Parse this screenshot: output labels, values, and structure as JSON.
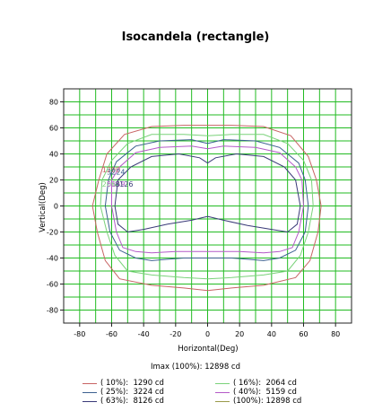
{
  "chart_data": {
    "type": "line",
    "title": "Isocandela (rectangle)",
    "xlabel": "Horizontal(Deg)",
    "ylabel": "Vertical(Deg)",
    "xlim": [
      -90,
      90
    ],
    "ylim": [
      -90,
      90
    ],
    "x_ticks": [
      -80,
      -60,
      -40,
      -20,
      0,
      20,
      40,
      60,
      80
    ],
    "y_ticks": [
      80,
      60,
      40,
      20,
      0,
      -20,
      -40,
      -60,
      -80
    ],
    "grid": true,
    "grid_color": "#22bb22",
    "imax_text": "Imax (100%): 12898 cd",
    "series": [
      {
        "name": "( 10%):  1290 cd",
        "color": "#c86464",
        "label": "1290",
        "points": [
          [
            -68,
            20
          ],
          [
            -72,
            0
          ],
          [
            -69,
            -20
          ],
          [
            -64,
            -42
          ],
          [
            -55,
            -56
          ],
          [
            -35,
            -61
          ],
          [
            -15,
            -63
          ],
          [
            0,
            -65
          ],
          [
            15,
            -63
          ],
          [
            35,
            -61
          ],
          [
            55,
            -55
          ],
          [
            64,
            -42
          ],
          [
            69,
            -20
          ],
          [
            71,
            0
          ],
          [
            68,
            20
          ],
          [
            63,
            38
          ],
          [
            52,
            54
          ],
          [
            35,
            61
          ],
          [
            15,
            62
          ],
          [
            0,
            62
          ],
          [
            -15,
            62
          ],
          [
            -35,
            61
          ],
          [
            -52,
            55
          ],
          [
            -63,
            40
          ],
          [
            -68,
            20
          ]
        ]
      },
      {
        "name": "( 16%):  2064 cd",
        "color": "#7ad27a",
        "label": "2064",
        "points": [
          [
            -66,
            20
          ],
          [
            -67,
            0
          ],
          [
            -63,
            -20
          ],
          [
            -58,
            -38
          ],
          [
            -50,
            -50
          ],
          [
            -35,
            -53
          ],
          [
            -15,
            -55
          ],
          [
            0,
            -56
          ],
          [
            15,
            -55
          ],
          [
            35,
            -53
          ],
          [
            50,
            -50
          ],
          [
            58,
            -38
          ],
          [
            63,
            -20
          ],
          [
            66,
            0
          ],
          [
            65,
            20
          ],
          [
            60,
            35
          ],
          [
            50,
            48
          ],
          [
            35,
            55
          ],
          [
            15,
            55
          ],
          [
            0,
            54
          ],
          [
            -15,
            55
          ],
          [
            -35,
            55
          ],
          [
            -50,
            48
          ],
          [
            -60,
            35
          ],
          [
            -66,
            20
          ]
        ]
      },
      {
        "name": "( 25%):  3224 cd",
        "color": "#3c6090",
        "label": "3224",
        "points": [
          [
            -62,
            20
          ],
          [
            -64,
            0
          ],
          [
            -61,
            -20
          ],
          [
            -55,
            -34
          ],
          [
            -45,
            -40
          ],
          [
            -35,
            -42
          ],
          [
            -25,
            -41
          ],
          [
            -15,
            -40
          ],
          [
            0,
            -40
          ],
          [
            15,
            -40
          ],
          [
            25,
            -41
          ],
          [
            35,
            -42
          ],
          [
            45,
            -40
          ],
          [
            55,
            -34
          ],
          [
            61,
            -20
          ],
          [
            63,
            0
          ],
          [
            61,
            20
          ],
          [
            57,
            33
          ],
          [
            45,
            45
          ],
          [
            30,
            50
          ],
          [
            10,
            51
          ],
          [
            0,
            48
          ],
          [
            -10,
            51
          ],
          [
            -30,
            50
          ],
          [
            -45,
            46
          ],
          [
            -57,
            34
          ],
          [
            -62,
            20
          ]
        ]
      },
      {
        "name": "( 40%):  5159 cd",
        "color": "#b45ac8",
        "label": "5159",
        "points": [
          [
            -60,
            20
          ],
          [
            -60,
            0
          ],
          [
            -57,
            -20
          ],
          [
            -53,
            -32
          ],
          [
            -45,
            -35
          ],
          [
            -35,
            -36
          ],
          [
            -20,
            -35
          ],
          [
            0,
            -35
          ],
          [
            20,
            -35
          ],
          [
            35,
            -36
          ],
          [
            45,
            -35
          ],
          [
            53,
            -32
          ],
          [
            57,
            -20
          ],
          [
            60,
            0
          ],
          [
            59,
            20
          ],
          [
            55,
            30
          ],
          [
            45,
            41
          ],
          [
            30,
            45
          ],
          [
            10,
            46
          ],
          [
            0,
            44
          ],
          [
            -10,
            46
          ],
          [
            -30,
            45
          ],
          [
            -45,
            41
          ],
          [
            -55,
            30
          ],
          [
            -60,
            20
          ]
        ]
      },
      {
        "name": "( 63%):  8126 cd",
        "color": "#3a3a78",
        "label": "8126",
        "points": [
          [
            -56,
            20
          ],
          [
            -58,
            0
          ],
          [
            -56,
            -14
          ],
          [
            -50,
            -20
          ],
          [
            -40,
            -18
          ],
          [
            -25,
            -14
          ],
          [
            -10,
            -11
          ],
          [
            0,
            -8
          ],
          [
            10,
            -11
          ],
          [
            25,
            -15
          ],
          [
            40,
            -18
          ],
          [
            50,
            -20
          ],
          [
            56,
            -14
          ],
          [
            58,
            0
          ],
          [
            55,
            20
          ],
          [
            48,
            30
          ],
          [
            35,
            38
          ],
          [
            18,
            40
          ],
          [
            5,
            37
          ],
          [
            0,
            33
          ],
          [
            -5,
            37
          ],
          [
            -18,
            40
          ],
          [
            -35,
            38
          ],
          [
            -48,
            30
          ],
          [
            -56,
            20
          ]
        ]
      },
      {
        "name": "(100%): 12898 cd",
        "color": "#9a9a4a",
        "label": "12898",
        "points": []
      }
    ]
  }
}
